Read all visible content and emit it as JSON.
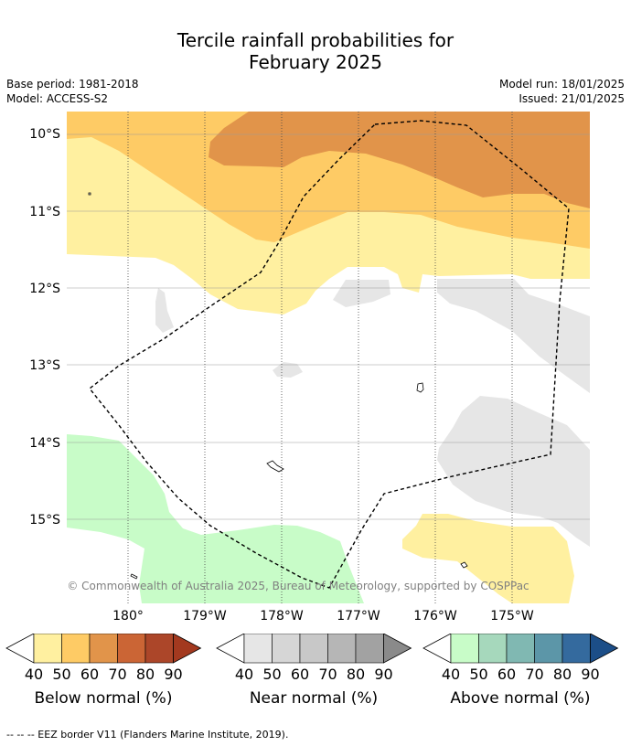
{
  "title_line1": "Tercile rainfall probabilities for",
  "title_line2": "February 2025",
  "meta": {
    "base_period": "Base period: 1981-2018",
    "model": "Model: ACCESS-S2",
    "model_run": "Model run: 18/01/2025",
    "issued": "Issued: 21/01/2025"
  },
  "map": {
    "lat_labels": [
      "10°S",
      "11°S",
      "12°S",
      "13°S",
      "14°S",
      "15°S"
    ],
    "lon_labels": [
      "180°",
      "179°W",
      "178°W",
      "177°W",
      "176°W",
      "175°W"
    ],
    "copyright": "© Commonwealth of Australia 2025, Bureau of Meteorology, supported by COSPPac"
  },
  "colorbars": [
    {
      "label": "Below normal (%)",
      "ticks": [
        "40",
        "50",
        "60",
        "70",
        "80",
        "90"
      ],
      "colors": [
        "#fff0a0",
        "#fecb65",
        "#e1944a",
        "#cb6535",
        "#ac4629",
        "#a3391f"
      ]
    },
    {
      "label": "Near normal (%)",
      "ticks": [
        "40",
        "50",
        "60",
        "70",
        "80",
        "90"
      ],
      "colors": [
        "#e6e6e6",
        "#d6d6d6",
        "#c8c8c8",
        "#b6b6b6",
        "#a2a2a2",
        "#8a8a8a"
      ]
    },
    {
      "label": "Above normal (%)",
      "ticks": [
        "40",
        "50",
        "60",
        "70",
        "80",
        "90"
      ],
      "colors": [
        "#c8fcc8",
        "#a6d8bc",
        "#80b8b2",
        "#5c96a8",
        "#346a9e",
        "#1c4e88"
      ]
    }
  ],
  "footnote": "--  --  -- EEZ border V11 (Flanders Marine Institute, 2019)."
}
